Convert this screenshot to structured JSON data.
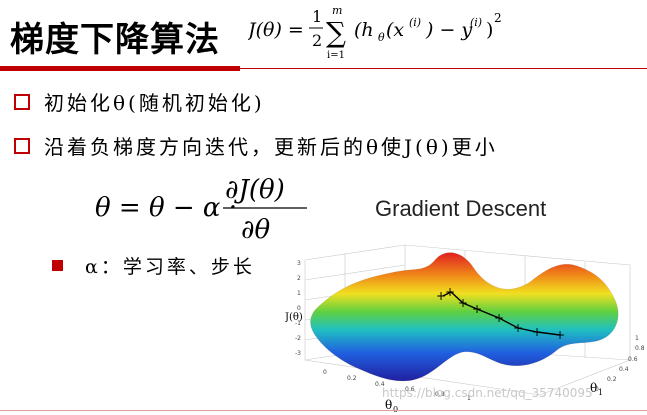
{
  "slide": {
    "title": "梯度下降算法",
    "title_formula": {
      "lhs": "J(θ) =",
      "frac_num": "1",
      "frac_den": "2",
      "sum_top": "m",
      "sum_bottom": "i=1",
      "body": "(h",
      "body_sub": "θ",
      "body2": "(x",
      "body_sup": "(i)",
      "body3": ") − y",
      "body_sup2": "(i)",
      "body4": ")",
      "power": "2"
    }
  },
  "bullets": [
    {
      "text": "初始化θ(随机初始化)"
    },
    {
      "text": "沿着负梯度方向迭代，更新后的θ使J(θ)更小"
    }
  ],
  "update_formula": {
    "lhs": "θ = θ − α ·",
    "num": "∂J(θ)",
    "den": "∂θ"
  },
  "sub_bullet": {
    "text": "α：学习率、步长"
  },
  "figure": {
    "title": "Gradient Descent",
    "z_label": "J(θ)",
    "x_label": "θ",
    "x_label_sub": "0",
    "y_label": "θ",
    "y_label_sub": "1",
    "z_ticks": [
      "3",
      "2",
      "1",
      "0",
      "-1",
      "-2",
      "-3"
    ],
    "x_ticks": [
      "0",
      "0.2",
      "0.4",
      "0.6",
      "0.8",
      "1"
    ],
    "y_ticks": [
      "1",
      "0.8",
      "0.6",
      "0.4",
      "0.2",
      "0"
    ],
    "colors": {
      "accent": "#c00000",
      "path": "#000000"
    }
  },
  "watermark": "https://blog.csdn.net/qq_35740095"
}
